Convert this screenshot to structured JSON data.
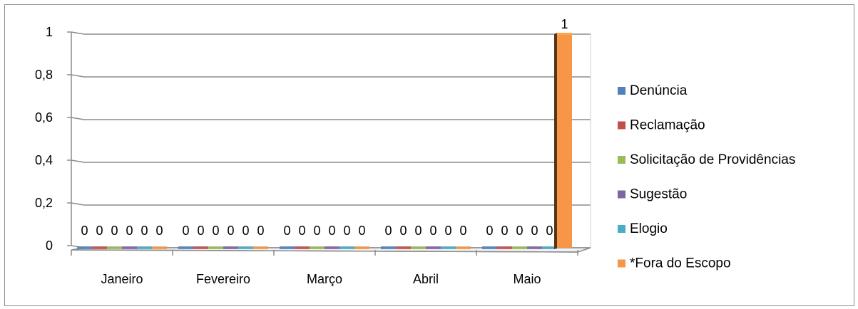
{
  "chart_data": {
    "type": "bar",
    "title": "",
    "xlabel": "",
    "ylabel": "",
    "ylim": [
      0,
      1
    ],
    "yticks": [
      "0",
      "0,2",
      "0,4",
      "0,6",
      "0,8",
      "1"
    ],
    "ytick_values": [
      0,
      0.2,
      0.4,
      0.6,
      0.8,
      1
    ],
    "categories": [
      "Janeiro",
      "Fevereiro",
      "Março",
      "Abril",
      "Maio"
    ],
    "series": [
      {
        "name": "Denúncia",
        "color": "#4f81bd",
        "values": [
          0,
          0,
          0,
          0,
          0
        ]
      },
      {
        "name": "Reclamação",
        "color": "#c0504d",
        "values": [
          0,
          0,
          0,
          0,
          0
        ]
      },
      {
        "name": "Solicitação de Providências",
        "color": "#9bbb59",
        "values": [
          0,
          0,
          0,
          0,
          0
        ]
      },
      {
        "name": "Sugestão",
        "color": "#8064a2",
        "values": [
          0,
          0,
          0,
          0,
          0
        ]
      },
      {
        "name": "Elogio",
        "color": "#4bacc6",
        "values": [
          0,
          0,
          0,
          0,
          0
        ]
      },
      {
        "name": "*Fora do Escopo",
        "color": "#f79646",
        "values": [
          0,
          0,
          0,
          0,
          1
        ]
      }
    ],
    "data_labels": [
      [
        "0",
        "0",
        "0",
        "0",
        "0",
        "0"
      ],
      [
        "0",
        "0",
        "0",
        "0",
        "0",
        "0"
      ],
      [
        "0",
        "0",
        "0",
        "0",
        "0",
        "0"
      ],
      [
        "0",
        "0",
        "0",
        "0",
        "0",
        "0"
      ],
      [
        "0",
        "0",
        "0",
        "0",
        "0",
        "1"
      ]
    ],
    "grid": true,
    "style": "3d-clustered-column",
    "legend_position": "right"
  }
}
